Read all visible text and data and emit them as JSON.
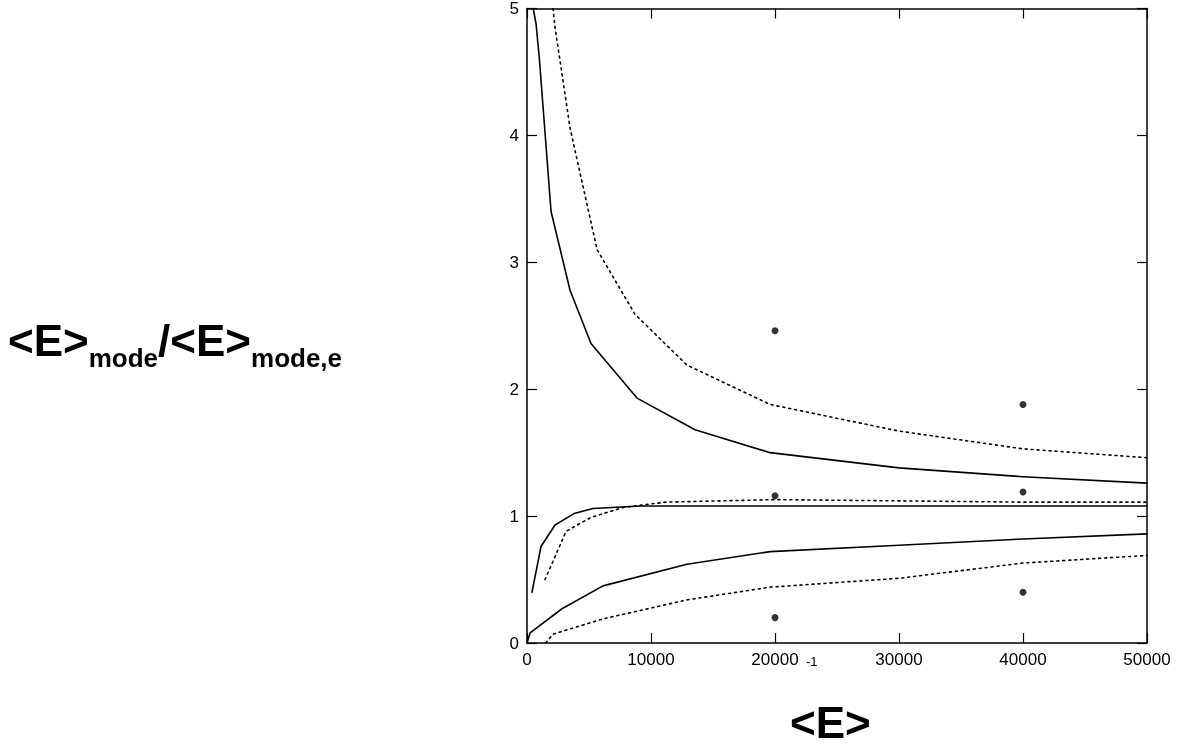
{
  "chart_data": {
    "type": "line",
    "xlabel": "<E>",
    "ylabel": "<E>$_{mode}$/<E>$_{mode,e}$",
    "annotations": [
      "-1"
    ],
    "xlim": [
      0,
      50000
    ],
    "ylim": [
      0,
      5
    ],
    "xticks": [
      0,
      10000,
      20000,
      30000,
      40000,
      50000
    ],
    "yticks": [
      0,
      1,
      2,
      3,
      4,
      5
    ],
    "grid": false,
    "marker": "none",
    "series": [
      {
        "color": "#000000",
        "line_style": "solid",
        "x": [
          500,
          730,
          1000,
          1940,
          3470,
          5160,
          8870,
          13550,
          19600,
          30000,
          40000,
          50000
        ],
        "values": [
          5.0,
          4.88,
          4.6,
          3.4,
          2.78,
          2.36,
          1.93,
          1.68,
          1.5,
          1.38,
          1.31,
          1.26
        ]
      },
      {
        "color": "#000000",
        "line_style": "dotted",
        "x": [
          2100,
          2260,
          3470,
          5650,
          8710,
          12900,
          19600,
          30000,
          40000,
          50000
        ],
        "values": [
          5.0,
          4.85,
          4.06,
          3.1,
          2.59,
          2.19,
          1.88,
          1.67,
          1.53,
          1.46
        ]
      },
      {
        "color": "#000000",
        "line_style": "solid",
        "x": [
          400,
          1130,
          2260,
          3790,
          5320,
          9190,
          20000,
          30000,
          40000,
          50000
        ],
        "values": [
          0.4,
          0.76,
          0.93,
          1.02,
          1.06,
          1.08,
          1.08,
          1.08,
          1.08,
          1.08
        ]
      },
      {
        "color": "#000000",
        "line_style": "dotted",
        "x": [
          1450,
          3150,
          5160,
          7820,
          11200,
          20000,
          30000,
          40000,
          50000
        ],
        "values": [
          0.5,
          0.88,
          0.99,
          1.07,
          1.11,
          1.13,
          1.12,
          1.11,
          1.11
        ]
      },
      {
        "color": "#000000",
        "line_style": "solid",
        "x": [
          0,
          250,
          2820,
          6130,
          12900,
          19600,
          30000,
          40000,
          50000
        ],
        "values": [
          0.0,
          0.08,
          0.27,
          0.45,
          0.62,
          0.72,
          0.77,
          0.82,
          0.86
        ]
      },
      {
        "color": "#000000",
        "line_style": "dotted",
        "x": [
          1500,
          2100,
          6130,
          12900,
          19600,
          30000,
          40000,
          50000
        ],
        "values": [
          0.0,
          0.07,
          0.19,
          0.34,
          0.44,
          0.51,
          0.63,
          0.69
        ]
      },
      {
        "type": "scatter",
        "marker": "circle",
        "color": "#000000",
        "x": [
          20000,
          20000,
          20000,
          40000,
          40000,
          40000
        ],
        "values": [
          2.46,
          1.16,
          0.2,
          1.88,
          1.19,
          0.4
        ]
      }
    ]
  }
}
